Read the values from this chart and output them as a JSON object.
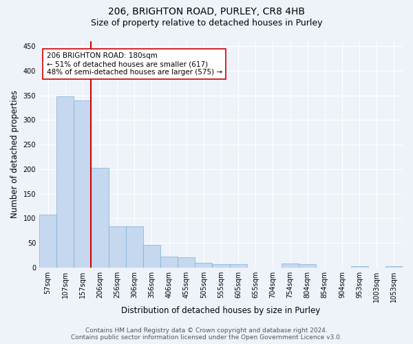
{
  "title": "206, BRIGHTON ROAD, PURLEY, CR8 4HB",
  "subtitle": "Size of property relative to detached houses in Purley",
  "xlabel": "Distribution of detached houses by size in Purley",
  "ylabel": "Number of detached properties",
  "categories": [
    "57sqm",
    "107sqm",
    "157sqm",
    "206sqm",
    "256sqm",
    "306sqm",
    "356sqm",
    "406sqm",
    "455sqm",
    "505sqm",
    "555sqm",
    "605sqm",
    "655sqm",
    "704sqm",
    "754sqm",
    "804sqm",
    "854sqm",
    "904sqm",
    "953sqm",
    "1003sqm",
    "1053sqm"
  ],
  "values": [
    108,
    348,
    340,
    202,
    83,
    83,
    46,
    22,
    20,
    10,
    7,
    6,
    0,
    0,
    8,
    6,
    0,
    0,
    2,
    0,
    3
  ],
  "bar_color": "#c5d8f0",
  "bar_edge_color": "#7aafd4",
  "vline_x": 2.5,
  "vline_color": "#cc0000",
  "annotation_text": "206 BRIGHTON ROAD: 180sqm\n← 51% of detached houses are smaller (617)\n48% of semi-detached houses are larger (575) →",
  "annotation_box_color": "white",
  "annotation_box_edge": "#cc0000",
  "ylim": [
    0,
    460
  ],
  "yticks": [
    0,
    50,
    100,
    150,
    200,
    250,
    300,
    350,
    400,
    450
  ],
  "footer_line1": "Contains HM Land Registry data © Crown copyright and database right 2024.",
  "footer_line2": "Contains public sector information licensed under the Open Government Licence v3.0.",
  "background_color": "#eef2f9",
  "plot_bg_color": "#eef2f9",
  "title_fontsize": 10,
  "subtitle_fontsize": 9,
  "axis_label_fontsize": 8.5,
  "tick_fontsize": 7,
  "footer_fontsize": 6.5,
  "annotation_fontsize": 7.5
}
